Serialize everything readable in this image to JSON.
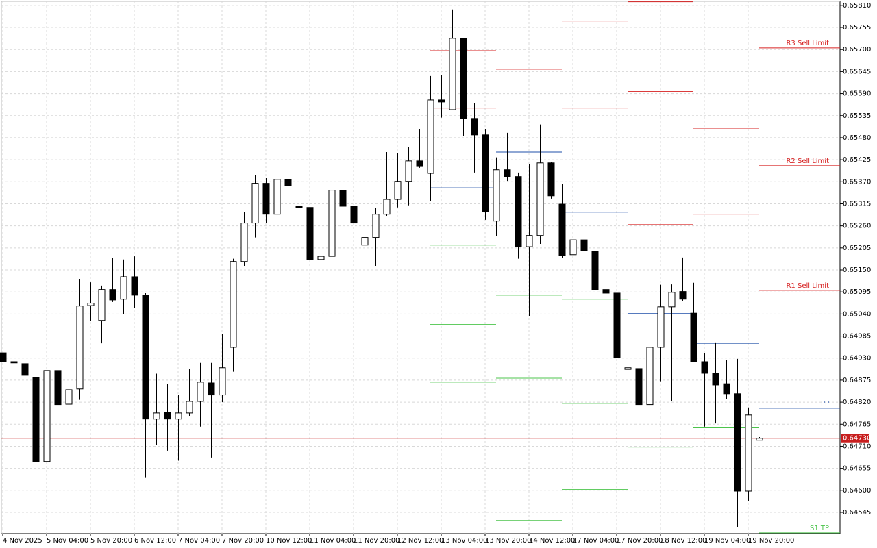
{
  "chart_data": {
    "type": "candlestick",
    "categories": [
      "4 Nov 2025",
      null,
      null,
      null,
      "5 Nov 04:00",
      null,
      null,
      null,
      "5 Nov 20:00",
      null,
      null,
      null,
      "6 Nov 12:00",
      null,
      null,
      null,
      "7 Nov 04:00",
      null,
      null,
      null,
      "7 Nov 20:00",
      null,
      null,
      null,
      "10 Nov 12:00",
      null,
      null,
      null,
      "11 Nov 04:00",
      null,
      null,
      null,
      "11 Nov 20:00",
      null,
      null,
      null,
      "12 Nov 12:00",
      null,
      null,
      null,
      "13 Nov 04:00",
      null,
      null,
      null,
      "13 Nov 20:00",
      null,
      null,
      null,
      "14 Nov 12:00",
      null,
      null,
      null,
      "17 Nov 04:00",
      null,
      null,
      null,
      "17 Nov 20:00",
      null,
      null,
      null,
      "18 Nov 12:00",
      null,
      null,
      null,
      "19 Nov 04:00",
      null,
      null,
      null,
      "19 Nov 20:00",
      null
    ],
    "open": [
      0.64943,
      0.64921,
      0.64916,
      0.64882,
      0.64672,
      0.64899,
      0.64815,
      0.64853,
      0.65061,
      0.65024,
      0.65101,
      0.65077,
      0.65133,
      0.65087,
      0.64778,
      0.64795,
      0.64778,
      0.64793,
      0.64822,
      0.64868,
      0.64838,
      0.64957,
      0.65171,
      0.65267,
      0.65366,
      0.65289,
      0.65376,
      0.65309,
      0.65306,
      0.65176,
      0.65184,
      0.65349,
      0.65309,
      0.65212,
      0.65231,
      0.65289,
      0.65326,
      0.65371,
      0.65422,
      0.65391,
      0.65574,
      0.6555,
      0.65728,
      0.65528,
      0.65487,
      0.65272,
      0.654,
      0.65383,
      0.65208,
      0.65236,
      0.65417,
      0.65314,
      0.65188,
      0.65225,
      0.65196,
      0.65101,
      0.65092,
      0.64902,
      0.64904,
      0.64814,
      0.64957,
      0.65058,
      0.65096,
      0.65042,
      0.64921,
      0.64892,
      0.64866,
      0.64841,
      0.64598,
      0.64725
    ],
    "high": [
      0.64943,
      0.65034,
      0.64921,
      0.64933,
      0.6499,
      0.64957,
      0.64911,
      0.65126,
      0.65119,
      0.65111,
      0.65179,
      0.65176,
      0.65184,
      0.65092,
      0.64891,
      0.64865,
      0.64839,
      0.64904,
      0.64918,
      0.64918,
      0.6499,
      0.65178,
      0.65294,
      0.65386,
      0.65379,
      0.65391,
      0.65396,
      0.65335,
      0.65313,
      0.65313,
      0.65381,
      0.65369,
      0.65338,
      0.65313,
      0.65304,
      0.65444,
      0.65441,
      0.65456,
      0.65502,
      0.65634,
      0.65636,
      0.658,
      0.65728,
      0.65567,
      0.65502,
      0.65431,
      0.65492,
      0.65393,
      0.65414,
      0.65513,
      0.6542,
      0.65364,
      0.65243,
      0.65372,
      0.65244,
      0.65152,
      0.65099,
      0.65007,
      0.64974,
      0.64986,
      0.65113,
      0.65114,
      0.65181,
      0.65118,
      0.64943,
      0.64969,
      0.64926,
      0.64928,
      0.64807,
      0.64733
    ],
    "low": [
      0.64921,
      0.64805,
      0.6488,
      0.64585,
      0.64668,
      0.6481,
      0.64737,
      0.64826,
      0.65022,
      0.64967,
      0.6507,
      0.65039,
      0.65056,
      0.64631,
      0.64713,
      0.64699,
      0.64674,
      0.64785,
      0.64759,
      0.64682,
      0.6482,
      0.64896,
      0.65159,
      0.65231,
      0.65268,
      0.65143,
      0.65357,
      0.6528,
      0.65173,
      0.65149,
      0.65178,
      0.65208,
      0.65267,
      0.65193,
      0.65159,
      0.65285,
      0.65306,
      0.65311,
      0.65405,
      0.65321,
      0.6553,
      0.6555,
      0.65484,
      0.65393,
      0.65275,
      0.65234,
      0.65372,
      0.65178,
      0.65034,
      0.65215,
      0.65328,
      0.65179,
      0.65118,
      0.65195,
      0.65073,
      0.65003,
      0.64819,
      0.6482,
      0.64648,
      0.64747,
      0.64872,
      0.64822,
      0.65072,
      0.64921,
      0.64759,
      0.64767,
      0.64827,
      0.64509,
      0.64574,
      0.64725
    ],
    "close": [
      0.64921,
      0.64918,
      0.64887,
      0.64672,
      0.64899,
      0.64814,
      0.64851,
      0.6506,
      0.65067,
      0.65101,
      0.65075,
      0.65133,
      0.65087,
      0.64778,
      0.64793,
      0.64778,
      0.64793,
      0.64822,
      0.6487,
      0.64838,
      0.64906,
      0.65171,
      0.65267,
      0.65366,
      0.65289,
      0.65376,
      0.65361,
      0.65306,
      0.65176,
      0.65184,
      0.65349,
      0.65309,
      0.65267,
      0.65231,
      0.65289,
      0.65326,
      0.65371,
      0.65422,
      0.65408,
      0.65574,
      0.65569,
      0.65728,
      0.65528,
      0.65487,
      0.65296,
      0.654,
      0.65383,
      0.65208,
      0.65236,
      0.65417,
      0.65335,
      0.65186,
      0.65225,
      0.65198,
      0.65101,
      0.65092,
      0.64932,
      0.64906,
      0.64814,
      0.64957,
      0.65058,
      0.65094,
      0.65077,
      0.64921,
      0.64892,
      0.64863,
      0.64841,
      0.64598,
      0.64788,
      0.6473
    ],
    "up_color": "#ffffff",
    "down_color": "#000000",
    "wick_color": "#000000",
    "xlim": [
      -0.125,
      76.375
    ],
    "ylim": [
      0.64492,
      0.6582
    ],
    "yticks": [
      {
        "value": 0.6581,
        "label": "0.65810"
      },
      0.65755,
      {
        "value": 0.657,
        "label": "0.65700"
      },
      0.65645,
      {
        "value": 0.6559,
        "label": "0.65590"
      },
      0.65535,
      {
        "value": 0.6548,
        "label": "0.65480"
      },
      0.65425,
      {
        "value": 0.6537,
        "label": "0.65370"
      },
      0.65315,
      {
        "value": 0.6526,
        "label": "0.65260"
      },
      0.65205,
      {
        "value": 0.6515,
        "label": "0.65150"
      },
      0.65095,
      {
        "value": 0.6504,
        "label": "0.65040"
      },
      0.64985,
      {
        "value": 0.6493,
        "label": "0.64930"
      },
      0.64875,
      {
        "value": 0.6482,
        "label": "0.64820"
      },
      0.64765,
      {
        "value": 0.6471,
        "label": "0.64710"
      },
      0.64655,
      {
        "value": 0.646,
        "label": "0.64600"
      },
      0.64545
    ],
    "grid": true,
    "current_price": {
      "value": 0.6473,
      "label": "0.64730",
      "color": "#c81e1e"
    },
    "levels": [
      {
        "value": 0.65697,
        "x0": 39,
        "x1": 45,
        "color": "#d62020"
      },
      {
        "value": 0.65554,
        "x0": 39,
        "x1": 45,
        "color": "#d62020"
      },
      {
        "value": 0.65355,
        "x0": 39,
        "x1": 45,
        "color": "#1f4fa8"
      },
      {
        "value": 0.65212,
        "x0": 39,
        "x1": 45,
        "color": "#4cc44c"
      },
      {
        "value": 0.65014,
        "x0": 39,
        "x1": 45,
        "color": "#4cc44c"
      },
      {
        "value": 0.6487,
        "x0": 39,
        "x1": 45,
        "color": "#4cc44c"
      },
      {
        "value": 0.65651,
        "x0": 45,
        "x1": 51,
        "color": "#d62020"
      },
      {
        "value": 0.65444,
        "x0": 45,
        "x1": 51,
        "color": "#1f4fa8"
      },
      {
        "value": 0.65087,
        "x0": 45,
        "x1": 51,
        "color": "#4cc44c"
      },
      {
        "value": 0.6488,
        "x0": 45,
        "x1": 51,
        "color": "#4cc44c"
      },
      {
        "value": 0.64525,
        "x0": 45,
        "x1": 51,
        "color": "#4cc44c"
      },
      {
        "value": 0.65771,
        "x0": 51,
        "x1": 57,
        "color": "#d62020"
      },
      {
        "value": 0.65554,
        "x0": 51,
        "x1": 57,
        "color": "#d62020"
      },
      {
        "value": 0.65294,
        "x0": 51,
        "x1": 57,
        "color": "#1f4fa8"
      },
      {
        "value": 0.65077,
        "x0": 51,
        "x1": 57,
        "color": "#4cc44c"
      },
      {
        "value": 0.64817,
        "x0": 51,
        "x1": 57,
        "color": "#4cc44c"
      },
      {
        "value": 0.64602,
        "x0": 51,
        "x1": 57,
        "color": "#4cc44c"
      },
      {
        "value": 0.65819,
        "x0": 57,
        "x1": 63,
        "color": "#d62020"
      },
      {
        "value": 0.65595,
        "x0": 57,
        "x1": 63,
        "color": "#d62020"
      },
      {
        "value": 0.65263,
        "x0": 57,
        "x1": 63,
        "color": "#d62020"
      },
      {
        "value": 0.65041,
        "x0": 57,
        "x1": 63,
        "color": "#1f4fa8"
      },
      {
        "value": 0.64708,
        "x0": 57,
        "x1": 63,
        "color": "#4cc44c"
      },
      {
        "value": 0.65502,
        "x0": 63,
        "x1": 69,
        "color": "#d62020"
      },
      {
        "value": 0.65289,
        "x0": 63,
        "x1": 69,
        "color": "#d62020"
      },
      {
        "value": 0.64967,
        "x0": 63,
        "x1": 69,
        "color": "#1f4fa8"
      },
      {
        "value": 0.64756,
        "x0": 63,
        "x1": 69,
        "color": "#4cc44c"
      },
      {
        "value": 0.65704,
        "x0": 69,
        "x1": 76.375,
        "color": "#d62020",
        "label": "R3 Sell Limit"
      },
      {
        "value": 0.6541,
        "x0": 69,
        "x1": 76.375,
        "color": "#d62020",
        "label": "R2 Sell Limit"
      },
      {
        "value": 0.65099,
        "x0": 69,
        "x1": 76.375,
        "color": "#d62020",
        "label": "R1 Sell Limit"
      },
      {
        "value": 0.64805,
        "x0": 69,
        "x1": 76.375,
        "color": "#1f4fa8",
        "label": "PP"
      },
      {
        "value": 0.64494,
        "x0": 69,
        "x1": 76.375,
        "color": "#4cc44c",
        "label": "S1 TP"
      }
    ]
  }
}
